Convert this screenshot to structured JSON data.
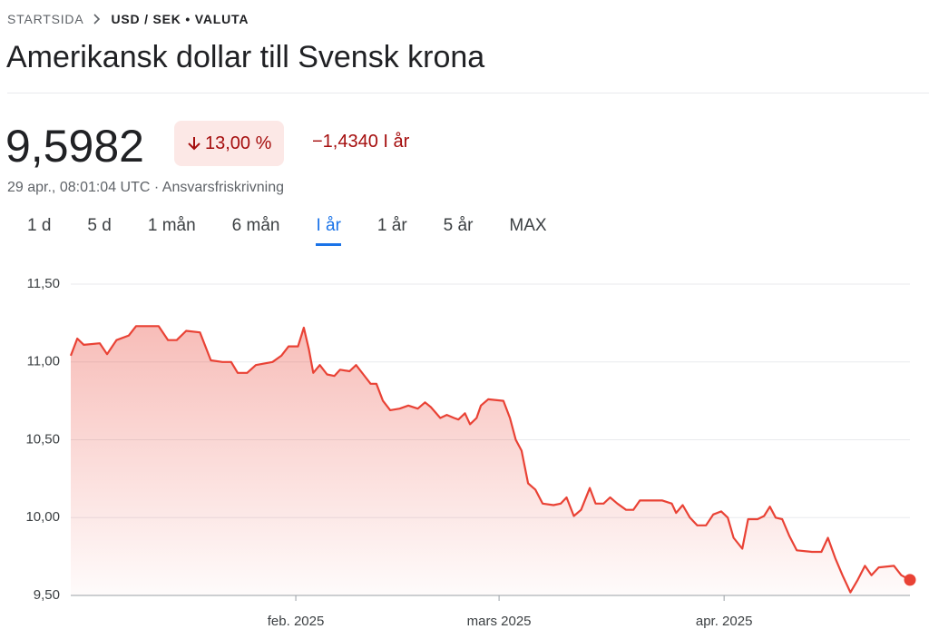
{
  "header": {
    "breadcrumb": [
      "STARTSIDA",
      "USD / SEK • VALUTA"
    ],
    "title": "Amerikansk dollar till Svensk krona"
  },
  "quote": {
    "price": "9,5982",
    "change_percent": "13,00 %",
    "change": "−1,4340 I år",
    "timestamp": "29 apr., 08:01:04 UTC · Ansvarsfriskrivning"
  },
  "tabs": [
    "1 d",
    "5 d",
    "1 mån",
    "6 mån",
    "I år",
    "1 år",
    "5 år",
    "MAX"
  ],
  "selected_tab": 4,
  "chart_data": {
    "type": "line",
    "color": "#e94235",
    "x": [
      0,
      0.9,
      1.8,
      4,
      5,
      6.3,
      8,
      9,
      12.1,
      13.4,
      14.6,
      15.9,
      17.8,
      19.3,
      20.9,
      22.1,
      23,
      24.3,
      25.5,
      27.8,
      29,
      30,
      31.3,
      32.1,
      32.8,
      33.4,
      34.3,
      35.3,
      36.3,
      37.1,
      38.4,
      39.3,
      40.3,
      41.3,
      42.1,
      43,
      44,
      45.3,
      46.5,
      47.8,
      48.8,
      49.6,
      50.9,
      51.8,
      52.8,
      53.4,
      54.3,
      55,
      55.9,
      56.5,
      57.5,
      59.6,
      60.5,
      61.3,
      62.1,
      63,
      64,
      65,
      66.5,
      67.5,
      68.3,
      69.3,
      70.3,
      71.5,
      72.3,
      73.4,
      74.3,
      75.3,
      76.5,
      77.5,
      78.4,
      79.6,
      81.5,
      82.8,
      83.4,
      84.3,
      85.3,
      86.3,
      87.5,
      88.5,
      89.6,
      90.5,
      91.3,
      92.5,
      93.3,
      94.6,
      95.5,
      96.3,
      97.1,
      98,
      99,
      100,
      102.1,
      103.4,
      104.3,
      105.3,
      106.3,
      107.4,
      108.4,
      109.4,
      110.3,
      111.3,
      113.4,
      114.4,
      115.6
    ],
    "values": [
      11.04,
      11.15,
      11.11,
      11.12,
      11.05,
      11.14,
      11.17,
      11.23,
      11.23,
      11.14,
      11.14,
      11.2,
      11.19,
      11.01,
      11,
      11,
      10.93,
      10.93,
      10.98,
      11,
      11.04,
      11.1,
      11.1,
      11.22,
      11.08,
      10.93,
      10.98,
      10.92,
      10.91,
      10.95,
      10.94,
      10.98,
      10.92,
      10.86,
      10.86,
      10.75,
      10.69,
      10.7,
      10.72,
      10.7,
      10.74,
      10.71,
      10.64,
      10.66,
      10.64,
      10.63,
      10.67,
      10.6,
      10.64,
      10.72,
      10.76,
      10.75,
      10.64,
      10.5,
      10.43,
      10.22,
      10.18,
      10.09,
      10.08,
      10.09,
      10.13,
      10.01,
      10.05,
      10.19,
      10.09,
      10.09,
      10.13,
      10.09,
      10.05,
      10.05,
      10.11,
      10.11,
      10.11,
      10.09,
      10.03,
      10.08,
      10,
      9.95,
      9.95,
      10.02,
      10.04,
      10,
      9.87,
      9.8,
      9.99,
      9.99,
      10.01,
      10.07,
      10,
      9.99,
      9.88,
      9.79,
      9.78,
      9.78,
      9.87,
      9.74,
      9.63,
      9.52,
      9.6,
      9.69,
      9.63,
      9.68,
      9.69,
      9.63,
      9.6
    ],
    "xlim": [
      0,
      115.6
    ],
    "xticks": [
      {
        "value": 31,
        "label": "feb. 2025"
      },
      {
        "value": 59,
        "label": "mars 2025"
      },
      {
        "value": 90,
        "label": "apr. 2025"
      }
    ],
    "ylim": [
      9.5,
      11.5
    ],
    "yticks": [
      {
        "value": 9.5,
        "label": "9,50"
      },
      {
        "value": 10,
        "label": "10,00"
      },
      {
        "value": 10.5,
        "label": "10,50"
      },
      {
        "value": 11,
        "label": "11,00"
      },
      {
        "value": 11.5,
        "label": "11,50"
      }
    ],
    "grid": true
  }
}
